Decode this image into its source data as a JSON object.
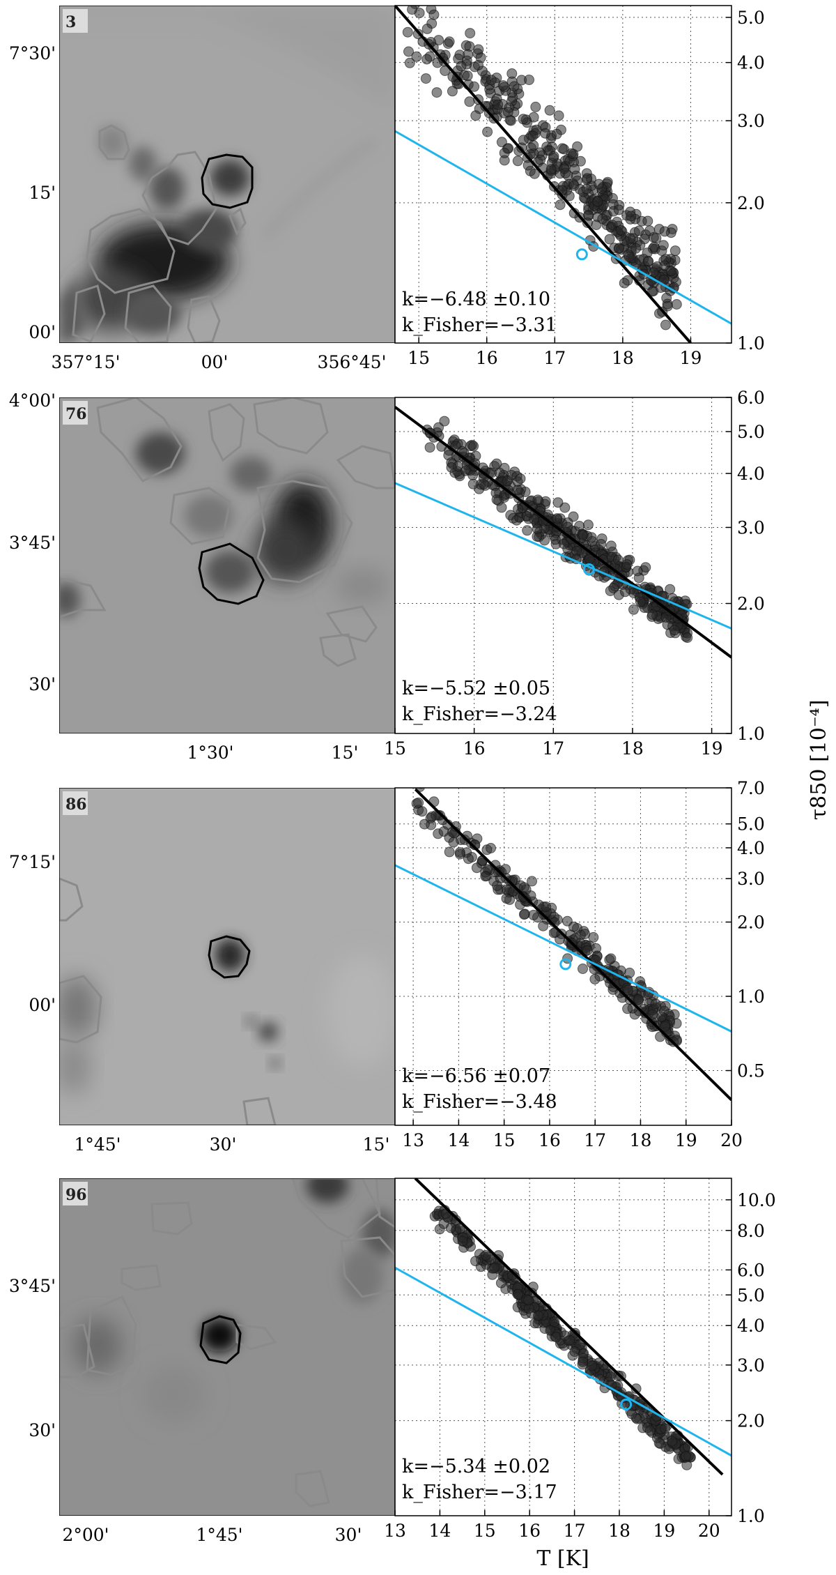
{
  "ylabel": "τ850 [10⁻⁴]",
  "xlabel": "T [K]",
  "panels": [
    {
      "id": "3",
      "map": {
        "lat_ticks": [
          "7°30'",
          "15'",
          "00'"
        ],
        "lon_ticks": [
          "357°15'",
          "00'",
          "356°45'"
        ]
      },
      "annotation": {
        "k": "k=−6.48 ±0.10",
        "k_fisher": "k_Fisher=−3.31"
      }
    },
    {
      "id": "76",
      "map": {
        "lat_ticks": [
          "4°00'",
          "3°45'",
          "30'"
        ],
        "lon_ticks": [
          "1°30'",
          "15'"
        ]
      },
      "annotation": {
        "k": "k=−5.52 ±0.05",
        "k_fisher": "k_Fisher=−3.24"
      }
    },
    {
      "id": "86",
      "map": {
        "lat_ticks": [
          "7°15'",
          "00'"
        ],
        "lon_ticks": [
          "1°45'",
          "30'",
          "15'"
        ]
      },
      "annotation": {
        "k": "k=−6.56 ±0.07",
        "k_fisher": "k_Fisher=−3.48"
      }
    },
    {
      "id": "96",
      "map": {
        "lat_ticks": [
          "3°45'",
          "30'"
        ],
        "lon_ticks": [
          "2°00'",
          "1°45'",
          "30'"
        ]
      },
      "annotation": {
        "k": "k=−5.34 ±0.02",
        "k_fisher": "k_Fisher=−3.17"
      }
    }
  ],
  "chart_data": [
    {
      "type": "scatter",
      "panel": "3",
      "x_ticks": [
        "15",
        "16",
        "17",
        "18",
        "19"
      ],
      "y_ticks": [
        "1.0",
        "2.0",
        "3.0",
        "4.0",
        "5.0"
      ],
      "xlim": [
        14.65,
        19.6
      ],
      "ylim": [
        1.0,
        5.3
      ],
      "log_y": true,
      "grid": true,
      "points_summary": {
        "x_range": [
          14.8,
          18.8
        ],
        "y_at_x_min": 5.1,
        "y_at_x_max": 1.35,
        "spread": 0.09,
        "n": 380
      },
      "fit_line": {
        "x": [
          14.65,
          19.0
        ],
        "y": [
          5.3,
          1.0
        ],
        "color": "#000000"
      },
      "fisher_line": {
        "x": [
          14.65,
          19.6
        ],
        "y": [
          2.85,
          1.1
        ],
        "color": "#1eb4ee"
      },
      "fisher_point": {
        "x": 17.4,
        "y": 1.55
      }
    },
    {
      "type": "scatter",
      "panel": "76",
      "x_ticks": [
        "15",
        "16",
        "17",
        "18",
        "19"
      ],
      "y_ticks": [
        "1.0",
        "2.0",
        "3.0",
        "4.0",
        "5.0",
        "6.0"
      ],
      "xlim": [
        15.0,
        19.25
      ],
      "ylim": [
        1.0,
        6.0
      ],
      "log_y": true,
      "grid": true,
      "points_summary": {
        "x_range": [
          15.4,
          18.7
        ],
        "y_at_x_min": 4.9,
        "y_at_x_max": 1.8,
        "spread": 0.05,
        "n": 420
      },
      "fit_line": {
        "x": [
          15.0,
          19.25
        ],
        "y": [
          5.7,
          1.5
        ],
        "color": "#000000"
      },
      "fisher_line": {
        "x": [
          15.0,
          19.25
        ],
        "y": [
          3.8,
          1.75
        ],
        "color": "#1eb4ee"
      },
      "fisher_point": {
        "x": 17.45,
        "y": 2.4
      }
    },
    {
      "type": "scatter",
      "panel": "86",
      "x_ticks": [
        "13",
        "14",
        "15",
        "16",
        "17",
        "18",
        "19",
        "20"
      ],
      "y_ticks": [
        "0.5",
        "1.0",
        "2.0",
        "3.0",
        "4.0",
        "5.0",
        "7.0"
      ],
      "xlim": [
        12.6,
        20.0
      ],
      "ylim": [
        0.3,
        7.0
      ],
      "log_y": true,
      "grid": true,
      "points_summary": {
        "x_range": [
          13.0,
          18.8
        ],
        "y_at_x_min": 6.3,
        "y_at_x_max": 0.72,
        "spread": 0.08,
        "n": 260
      },
      "fit_line": {
        "x": [
          13.05,
          20.0
        ],
        "y": [
          6.9,
          0.38
        ],
        "color": "#000000"
      },
      "fisher_line": {
        "x": [
          12.6,
          20.0
        ],
        "y": [
          3.4,
          0.72
        ],
        "color": "#1eb4ee"
      },
      "fisher_point": {
        "x": 16.35,
        "y": 1.35
      }
    },
    {
      "type": "scatter",
      "panel": "96",
      "x_ticks": [
        "13",
        "14",
        "15",
        "16",
        "17",
        "18",
        "19",
        "20"
      ],
      "y_ticks": [
        "1.0",
        "2.0",
        "3.0",
        "4.0",
        "5.0",
        "6.0",
        "8.0",
        "10.0"
      ],
      "xlim": [
        13.0,
        20.5
      ],
      "ylim": [
        1.0,
        11.7
      ],
      "log_y": true,
      "grid": true,
      "points_summary": {
        "x_range": [
          13.8,
          19.6
        ],
        "y_at_x_min": 9.6,
        "y_at_x_max": 1.5,
        "spread": 0.04,
        "n": 340
      },
      "fit_line": {
        "x": [
          13.45,
          20.3
        ],
        "y": [
          11.7,
          1.35
        ],
        "color": "#000000"
      },
      "fisher_line": {
        "x": [
          13.0,
          20.5
        ],
        "y": [
          6.1,
          1.55
        ],
        "color": "#1eb4ee"
      },
      "fisher_point": {
        "x": 18.15,
        "y": 2.25
      }
    }
  ]
}
